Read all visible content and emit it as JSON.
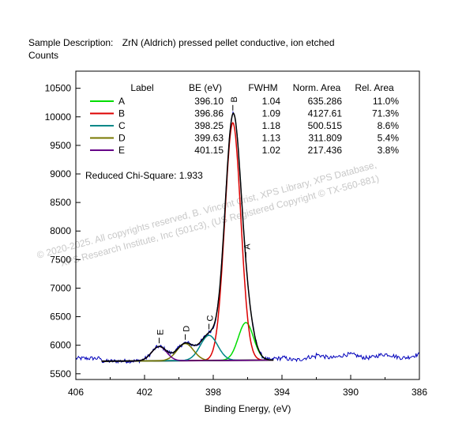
{
  "header": {
    "sample_label": "Sample Description:",
    "sample_value": "ZrN (Aldrich) pressed pellet conductive, ion etched",
    "counts_label": "Counts"
  },
  "watermark": {
    "line1": "© 2020-2025.  All copyrights reserved,   B. Vincent Crist,  XPS Library, XPS Database,",
    "line2": "XPS Research Institute, Inc (501c3),  (US Registered Copyright © TX-560-881)"
  },
  "chart_data": {
    "type": "line",
    "xlabel": "Binding Energy, (eV)",
    "ylabel": "Counts",
    "xlim": [
      406,
      386
    ],
    "ylim": [
      5400,
      10800
    ],
    "x_ticks": [
      406,
      402,
      398,
      394,
      390,
      386
    ],
    "y_ticks": [
      5500,
      6000,
      6500,
      7000,
      7500,
      8000,
      8500,
      9000,
      9500,
      10000,
      10500
    ],
    "chi_square": "Reduced Chi-Square: 1.933",
    "table_headers": [
      "Label",
      "BE (eV)",
      "FWHM",
      "Norm. Area",
      "Rel. Area"
    ],
    "series": [
      {
        "name": "A",
        "be": "396.10",
        "fwhm": "1.04",
        "norm_area": "635.286",
        "rel_area": "11.0%",
        "color": "#00dd00",
        "center": 396.1,
        "height": 660,
        "width": 1.04
      },
      {
        "name": "B",
        "be": "396.86",
        "fwhm": "1.09",
        "norm_area": "4127.61",
        "rel_area": "71.3%",
        "color": "#dd0000",
        "center": 396.86,
        "height": 4160,
        "width": 1.09
      },
      {
        "name": "C",
        "be": "398.25",
        "fwhm": "1.18",
        "norm_area": "500.515",
        "rel_area": "8.6%",
        "color": "#008888",
        "center": 398.25,
        "height": 440,
        "width": 1.18
      },
      {
        "name": "D",
        "be": "399.63",
        "fwhm": "1.13",
        "norm_area": "311.809",
        "rel_area": "5.4%",
        "color": "#777700",
        "center": 399.63,
        "height": 300,
        "width": 1.13
      },
      {
        "name": "E",
        "be": "401.15",
        "fwhm": "1.02",
        "norm_area": "217.436",
        "rel_area": "3.8%",
        "color": "#660088",
        "center": 401.15,
        "height": 250,
        "width": 1.02
      }
    ],
    "background": {
      "x_start": 404.5,
      "x_end": 394.5,
      "y_start": 5720,
      "y_end": 5740
    },
    "raw_baseline": 5770,
    "raw_color": "#0000bb",
    "envelope_color": "#000000"
  }
}
